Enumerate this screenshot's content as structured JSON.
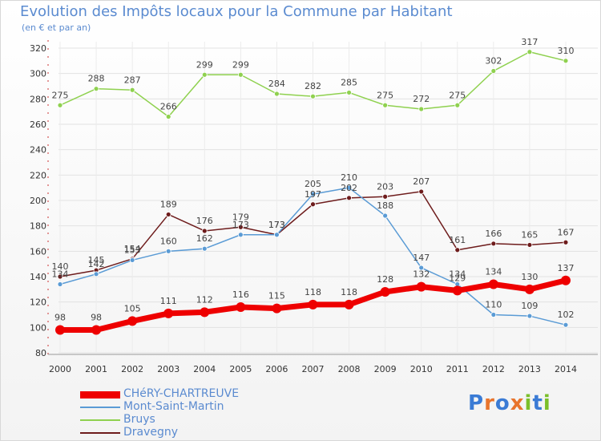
{
  "title": "Evolution des Impôts locaux pour la Commune par Habitant",
  "subtitle": "(en € et par an)",
  "logo": {
    "letters": [
      "P",
      "r",
      "o",
      "x",
      "i",
      "t",
      "i"
    ],
    "colors": [
      "#3a7bd5",
      "#e8742c",
      "#3a7bd5",
      "#e8742c",
      "#7bbf2a",
      "#3a7bd5",
      "#7bbf2a"
    ]
  },
  "chart_data": {
    "type": "line",
    "title": "Evolution des Impôts locaux pour la Commune par Habitant",
    "subtitle": "(en € et par an)",
    "x": [
      2000,
      2001,
      2002,
      2003,
      2004,
      2005,
      2006,
      2007,
      2008,
      2009,
      2010,
      2011,
      2012,
      2013,
      2014
    ],
    "ylim": [
      80,
      320
    ],
    "yticks": [
      80,
      100,
      120,
      140,
      160,
      180,
      200,
      220,
      240,
      260,
      280,
      300,
      320
    ],
    "grid": true,
    "legend_position": "bottom-left",
    "series": [
      {
        "name": "CHéRY-CHARTREUVE",
        "color": "#ee0000",
        "values": [
          98,
          98,
          105,
          111,
          112,
          116,
          115,
          118,
          118,
          128,
          132,
          129,
          134,
          130,
          137
        ],
        "labels": [
          "98",
          "98",
          "105",
          "111",
          "112",
          "116",
          "115",
          "118",
          "118",
          "128",
          "132",
          "129",
          "134",
          "130",
          "137"
        ]
      },
      {
        "name": "Mont-Saint-Martin",
        "color": "#5a9bd5",
        "values": [
          134,
          142,
          153,
          160,
          162,
          173,
          173,
          205,
          210,
          188,
          147,
          134,
          110,
          109,
          102
        ],
        "labels": [
          "134",
          "142",
          "153",
          "160",
          "162",
          "173",
          "173",
          "205",
          "210",
          "188",
          "147",
          "134",
          "110",
          "109",
          "102"
        ]
      },
      {
        "name": "Bruys",
        "color": "#8fd14f",
        "values": [
          275,
          288,
          287,
          266,
          299,
          299,
          284,
          282,
          285,
          275,
          272,
          275,
          302,
          317,
          310
        ],
        "labels": [
          "275",
          "288",
          "287",
          "266",
          "299",
          "299",
          "284",
          "282",
          "285",
          "275",
          "272",
          "275",
          "302",
          "317",
          "310"
        ]
      },
      {
        "name": "Dravegny",
        "color": "#6e1c1c",
        "values": [
          140,
          145,
          154,
          189,
          176,
          179,
          173,
          197,
          202,
          203,
          207,
          161,
          166,
          165,
          167
        ],
        "labels": [
          "140",
          "145",
          "154",
          "189",
          "176",
          "179",
          "173",
          "197",
          "202",
          "203",
          "207",
          "161",
          "166",
          "165",
          "167"
        ]
      }
    ]
  }
}
